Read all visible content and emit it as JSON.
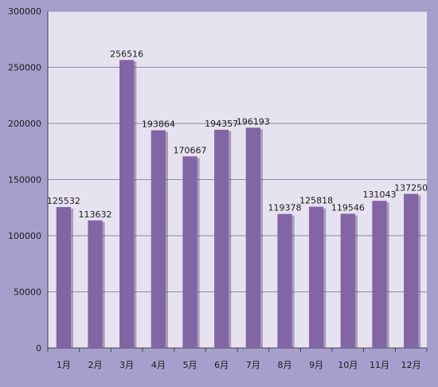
{
  "chart_data": {
    "type": "bar",
    "title": "",
    "xlabel": "",
    "ylabel": "",
    "categories": [
      "1月",
      "2月",
      "3月",
      "4月",
      "5月",
      "6月",
      "7月",
      "8月",
      "9月",
      "10月",
      "11月",
      "12月"
    ],
    "values": [
      125532,
      113632,
      256516,
      193864,
      170667,
      194357,
      196193,
      119378,
      125818,
      119546,
      131043,
      137250
    ],
    "ylim": [
      0,
      300000
    ],
    "yticks": [
      0,
      50000,
      100000,
      150000,
      200000,
      250000,
      300000
    ],
    "grid": true,
    "legend": "none",
    "colors": {
      "background": "#a79fcb",
      "plot_area": "#e6e2ef",
      "bar": "#8265a5",
      "bar_shadow": "#5a4a78",
      "grid": "#8f8aa6",
      "axis": "#444444"
    }
  }
}
